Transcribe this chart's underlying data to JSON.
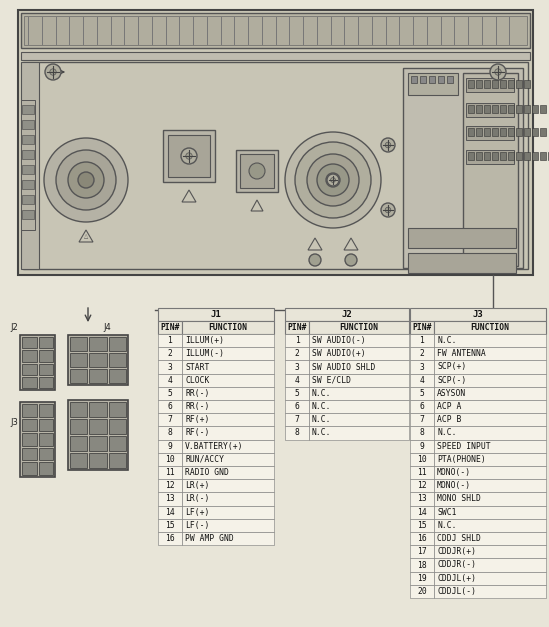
{
  "bg_color": "#e8e5d8",
  "j1_header": "J1",
  "j1_cols": [
    "PIN#",
    "FUNCTION"
  ],
  "j1_data": [
    [
      "1",
      "ILLUM(+)"
    ],
    [
      "2",
      "ILLUM(-)"
    ],
    [
      "3",
      "START"
    ],
    [
      "4",
      "CLOCK"
    ],
    [
      "5",
      "RR(-)"
    ],
    [
      "6",
      "RR(-)"
    ],
    [
      "7",
      "RF(+)"
    ],
    [
      "8",
      "RF(-)"
    ],
    [
      "9",
      "V.BATTERY(+)"
    ],
    [
      "10",
      "RUN/ACCY"
    ],
    [
      "11",
      "RADIO GND"
    ],
    [
      "12",
      "LR(+)"
    ],
    [
      "13",
      "LR(-)"
    ],
    [
      "14",
      "LF(+)"
    ],
    [
      "15",
      "LF(-)"
    ],
    [
      "16",
      "PW AMP GND"
    ]
  ],
  "j2_header": "J2",
  "j2_cols": [
    "PIN#",
    "FUNCTION"
  ],
  "j2_data": [
    [
      "1",
      "SW AUDIO(-)"
    ],
    [
      "2",
      "SW AUDIO(+)"
    ],
    [
      "3",
      "SW AUDIO SHLD"
    ],
    [
      "4",
      "SW E/CLD"
    ],
    [
      "5",
      "N.C."
    ],
    [
      "6",
      "N.C."
    ],
    [
      "7",
      "N.C."
    ],
    [
      "8",
      "N.C."
    ]
  ],
  "j3_header": "J3",
  "j3_cols": [
    "PIN#",
    "FUNCTION"
  ],
  "j3_data": [
    [
      "1",
      "N.C."
    ],
    [
      "2",
      "FW ANTENNA"
    ],
    [
      "3",
      "SCP(+)"
    ],
    [
      "4",
      "SCP(-)"
    ],
    [
      "5",
      "ASYSON"
    ],
    [
      "6",
      "ACP A"
    ],
    [
      "7",
      "ACP B"
    ],
    [
      "8",
      "N.C."
    ],
    [
      "9",
      "SPEED INPUT"
    ],
    [
      "10",
      "PTA(PHONE)"
    ],
    [
      "11",
      "MONO(-)"
    ],
    [
      "12",
      "MONO(-)"
    ],
    [
      "13",
      "MONO SHLD"
    ],
    [
      "14",
      "SWC1"
    ],
    [
      "15",
      "N.C."
    ],
    [
      "16",
      "CDDJ SHLD"
    ],
    [
      "17",
      "CDDJR(+)"
    ],
    [
      "18",
      "CDDJR(-)"
    ],
    [
      "19",
      "CDDJL(+)"
    ],
    [
      "20",
      "CDDJL(-)"
    ]
  ],
  "table_bg": "#f5f2e8",
  "table_edge": "#777777",
  "header_bg": "#e8e5d8",
  "font_size": 5.8,
  "header_font_size": 6.5,
  "radio_bg": "#d8d5c5",
  "radio_edge": "#555555"
}
